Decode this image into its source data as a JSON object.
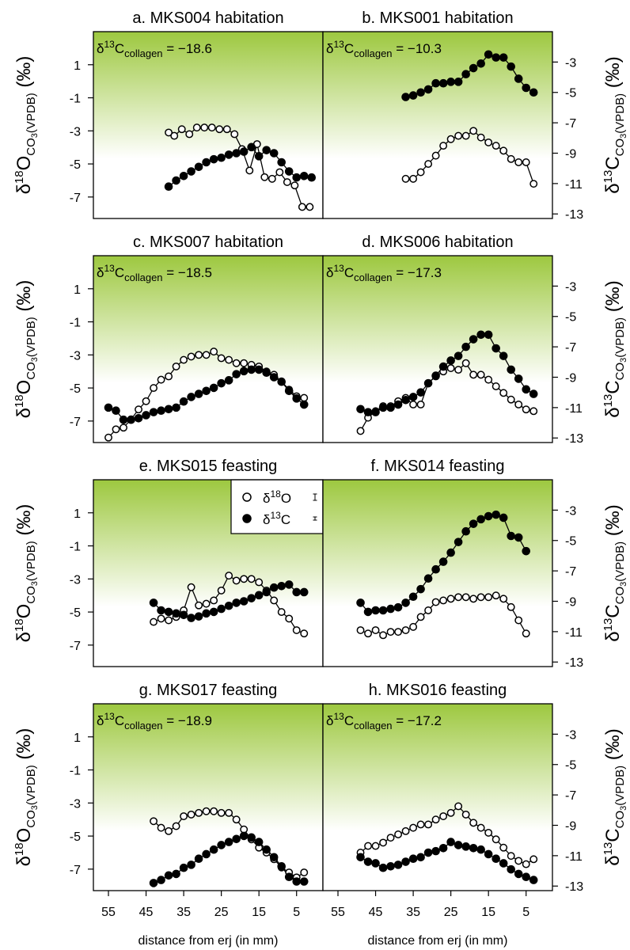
{
  "chart_data": {
    "type": "line",
    "x_axis": {
      "label": "distance from erj (in mm)",
      "ticks": [
        55,
        45,
        35,
        25,
        15,
        5
      ],
      "range": [
        59,
        -2
      ],
      "reversed": true
    },
    "y_left": {
      "label_main": "δ18O",
      "label_sub": "CO3(VPDB)",
      "label_tail": "(‰)",
      "ticks": [
        1,
        -1,
        -3,
        -5,
        -7
      ],
      "range": [
        3.0,
        -8.3
      ]
    },
    "y_right": {
      "label_main": "δ13C",
      "label_sub": "CO3(VPDB)",
      "label_tail": "(‰)",
      "ticks": [
        -3,
        -5,
        -7,
        -9,
        -11,
        -13
      ],
      "range": [
        -1.0,
        -13.3
      ]
    },
    "background": {
      "top_color": "#9dc83f",
      "bottom_color": "#ffffff"
    },
    "legend": {
      "panel": "e",
      "entries": [
        {
          "symbol": "open-circle",
          "label_main": "δ18O"
        },
        {
          "symbol": "filled-circle",
          "label_main": "δ13C"
        }
      ]
    },
    "panels": [
      {
        "id": "a",
        "title": "a. MKS004 habitation",
        "collagen": "−18.6",
        "o18": {
          "x": [
            39,
            37.5,
            35.5,
            33.5,
            31.5,
            29.5,
            27.5,
            25.5,
            23.5,
            21.5,
            19.5,
            17.5,
            15.5,
            13.5,
            11.5,
            9.5,
            7.5,
            5.5,
            3.5,
            1.5
          ],
          "y": [
            -3.1,
            -3.3,
            -2.9,
            -3.2,
            -2.8,
            -2.8,
            -2.8,
            -2.9,
            -2.9,
            -3.2,
            -4.1,
            -5.4,
            -3.8,
            -5.8,
            -5.9,
            -5.5,
            -6.1,
            -6.3,
            -7.6,
            -7.6
          ]
        },
        "c13": {
          "x": [
            39,
            37,
            35,
            33,
            31,
            29,
            27,
            25,
            23,
            21,
            19,
            17,
            15,
            13,
            11,
            9,
            7,
            5,
            3,
            1
          ],
          "y": [
            -11.2,
            -10.8,
            -10.5,
            -10.2,
            -9.9,
            -9.6,
            -9.4,
            -9.3,
            -9.1,
            -9.0,
            -8.9,
            -8.6,
            -9.2,
            -8.8,
            -9.0,
            -9.6,
            -10.2,
            -10.6,
            -10.5,
            -10.6
          ]
        }
      },
      {
        "id": "b",
        "title": "b. MKS001 habitation",
        "collagen": "−10.3",
        "o18": {
          "x": [
            37,
            35,
            33,
            31,
            29,
            27,
            25,
            23,
            21,
            19,
            17,
            15,
            13,
            11,
            9,
            7,
            5,
            3
          ],
          "y": [
            -5.9,
            -5.9,
            -5.5,
            -5.0,
            -4.5,
            -3.9,
            -3.5,
            -3.3,
            -3.3,
            -3.0,
            -3.4,
            -3.7,
            -3.9,
            -4.2,
            -4.7,
            -4.9,
            -4.9,
            -6.2
          ]
        },
        "c13": {
          "x": [
            37,
            35,
            33,
            31,
            29,
            27,
            25,
            23,
            21,
            19,
            17,
            15,
            13,
            11,
            9,
            7,
            5,
            3
          ],
          "y": [
            -5.3,
            -5.2,
            -5.0,
            -4.8,
            -4.4,
            -4.4,
            -4.3,
            -4.3,
            -3.8,
            -3.4,
            -3.1,
            -2.5,
            -2.7,
            -2.7,
            -3.3,
            -4.1,
            -4.7,
            -5.0
          ]
        }
      },
      {
        "id": "c",
        "title": "c. MKS007 habitation",
        "collagen": "−18.5",
        "o18": {
          "x": [
            55,
            53,
            51,
            49,
            47,
            45,
            43,
            41,
            39,
            37,
            35,
            33,
            31,
            29,
            27,
            25,
            23,
            21,
            19,
            17,
            15,
            13,
            11,
            9,
            7,
            5,
            3
          ],
          "y": [
            -8.0,
            -7.5,
            -7.4,
            -6.9,
            -6.3,
            -5.8,
            -5.0,
            -4.5,
            -4.3,
            -3.7,
            -3.3,
            -3.1,
            -3.0,
            -3.0,
            -2.8,
            -3.2,
            -3.3,
            -3.5,
            -3.5,
            -3.6,
            -3.7,
            -4.0,
            -4.2,
            -4.6,
            -5.1,
            -5.5,
            -5.6
          ]
        },
        "c13": {
          "x": [
            55,
            53,
            51,
            49,
            47,
            45,
            43,
            41,
            39,
            37,
            35,
            33,
            31,
            29,
            27,
            25,
            23,
            21,
            19,
            17,
            15,
            13,
            11,
            9,
            7,
            5,
            3
          ],
          "y": [
            -11.0,
            -11.2,
            -11.8,
            -11.8,
            -11.7,
            -11.5,
            -11.3,
            -11.2,
            -11.1,
            -11.0,
            -10.6,
            -10.3,
            -10.1,
            -9.9,
            -9.7,
            -9.4,
            -9.2,
            -8.8,
            -8.6,
            -8.5,
            -8.5,
            -8.7,
            -9.0,
            -9.3,
            -9.9,
            -10.4,
            -10.8
          ]
        }
      },
      {
        "id": "d",
        "title": "d. MKS006 habitation",
        "collagen": "−17.3",
        "o18": {
          "x": [
            49,
            47,
            45,
            43,
            41,
            39,
            37,
            35,
            33,
            31,
            29,
            27,
            25,
            23,
            21,
            19,
            17,
            15,
            13,
            11,
            9,
            7,
            5,
            3
          ],
          "y": [
            -7.6,
            -6.8,
            -6.4,
            -6.1,
            -6.1,
            -5.8,
            -5.6,
            -6.0,
            -6.0,
            -4.7,
            -4.3,
            -4.0,
            -3.8,
            -3.9,
            -3.5,
            -4.2,
            -4.2,
            -4.5,
            -4.9,
            -5.3,
            -5.7,
            -6.0,
            -6.3,
            -6.4
          ]
        },
        "c13": {
          "x": [
            49,
            47,
            45,
            43,
            41,
            39,
            37,
            35,
            33,
            31,
            29,
            27,
            25,
            23,
            21,
            19,
            17,
            15,
            13,
            11,
            9,
            7,
            5,
            3
          ],
          "y": [
            -11.1,
            -11.3,
            -11.3,
            -11.0,
            -11.0,
            -10.8,
            -10.5,
            -10.3,
            -10.0,
            -9.4,
            -8.9,
            -8.3,
            -7.9,
            -7.6,
            -7.0,
            -6.5,
            -6.2,
            -6.2,
            -7.1,
            -7.6,
            -8.5,
            -9.1,
            -9.8,
            -10.1
          ]
        }
      },
      {
        "id": "e",
        "title": "e. MKS015 feasting",
        "o18": {
          "x": [
            43,
            41,
            39,
            37,
            35,
            33,
            31,
            29,
            27,
            25,
            23,
            21,
            19,
            17,
            15,
            13,
            11,
            9,
            7,
            5,
            3
          ],
          "y": [
            -5.6,
            -5.4,
            -5.5,
            -5.3,
            -4.9,
            -3.5,
            -4.6,
            -4.5,
            -4.3,
            -3.7,
            -2.8,
            -3.1,
            -3.0,
            -3.0,
            -3.2,
            -3.7,
            -4.3,
            -5.0,
            -5.4,
            -6.1,
            -6.3
          ]
        },
        "c13": {
          "x": [
            43,
            41,
            39,
            37,
            35,
            33,
            31,
            29,
            27,
            25,
            23,
            21,
            19,
            17,
            15,
            13,
            11,
            9,
            7,
            5,
            3
          ],
          "y": [
            -9.1,
            -9.6,
            -9.7,
            -9.8,
            -9.9,
            -10.1,
            -10.0,
            -9.8,
            -9.7,
            -9.5,
            -9.3,
            -9.1,
            -9.0,
            -8.8,
            -8.6,
            -8.4,
            -8.1,
            -8.0,
            -7.9,
            -8.4,
            -8.4
          ]
        }
      },
      {
        "id": "f",
        "title": "f. MKS014 feasting",
        "o18": {
          "x": [
            49,
            47,
            45,
            43,
            41,
            39,
            37,
            35,
            33,
            31,
            29,
            27,
            25,
            23,
            21,
            19,
            17,
            15,
            13,
            11,
            9,
            7,
            5
          ],
          "y": [
            -6.1,
            -6.3,
            -6.1,
            -6.4,
            -6.2,
            -6.2,
            -6.1,
            -5.9,
            -5.3,
            -4.9,
            -4.4,
            -4.3,
            -4.2,
            -4.1,
            -4.1,
            -4.2,
            -4.1,
            -4.1,
            -4.0,
            -4.2,
            -4.7,
            -5.5,
            -6.3
          ]
        },
        "c13": {
          "x": [
            49,
            47,
            45,
            43,
            41,
            39,
            37,
            35,
            33,
            31,
            29,
            27,
            25,
            23,
            21,
            19,
            17,
            15,
            13,
            11,
            9,
            7,
            5
          ],
          "y": [
            -9.1,
            -9.7,
            -9.6,
            -9.6,
            -9.5,
            -9.4,
            -9.1,
            -8.7,
            -8.2,
            -7.5,
            -6.9,
            -6.4,
            -5.8,
            -5.1,
            -4.4,
            -3.9,
            -3.6,
            -3.4,
            -3.3,
            -3.5,
            -4.7,
            -4.8,
            -5.7
          ]
        }
      },
      {
        "id": "g",
        "title": "g. MKS017 feasting",
        "collagen": "−18.9",
        "o18": {
          "x": [
            43,
            41,
            39,
            37,
            35,
            33,
            31,
            29,
            27,
            25,
            23,
            21,
            19,
            17,
            15,
            13,
            11,
            9,
            7,
            5,
            3
          ],
          "y": [
            -4.1,
            -4.5,
            -4.7,
            -4.4,
            -3.8,
            -3.7,
            -3.6,
            -3.5,
            -3.5,
            -3.6,
            -3.6,
            -4.0,
            -4.6,
            -5.2,
            -5.7,
            -6.0,
            -6.4,
            -6.9,
            -7.2,
            -7.5,
            -7.2
          ]
        },
        "c13": {
          "x": [
            43,
            41,
            39,
            37,
            35,
            33,
            31,
            29,
            27,
            25,
            23,
            21,
            19,
            17,
            15,
            13,
            11,
            9,
            7,
            5,
            3
          ],
          "y": [
            -12.8,
            -12.6,
            -12.3,
            -12.2,
            -11.8,
            -11.6,
            -11.2,
            -10.9,
            -10.6,
            -10.3,
            -10.1,
            -9.9,
            -9.7,
            -9.8,
            -10.1,
            -10.6,
            -11.1,
            -11.7,
            -12.4,
            -12.7,
            -12.7
          ]
        }
      },
      {
        "id": "h",
        "title": "h. MKS016 feasting",
        "collagen": "−17.2",
        "o18": {
          "x": [
            49,
            47,
            45,
            43,
            41,
            39,
            37,
            35,
            33,
            31,
            29,
            27,
            25,
            23,
            21,
            19,
            17,
            15,
            13,
            11,
            9,
            7,
            5,
            3
          ],
          "y": [
            -6.0,
            -5.6,
            -5.6,
            -5.4,
            -5.1,
            -4.9,
            -4.7,
            -4.5,
            -4.3,
            -4.3,
            -4.0,
            -3.8,
            -3.6,
            -3.2,
            -3.7,
            -4.2,
            -4.5,
            -4.8,
            -5.2,
            -5.7,
            -6.2,
            -6.5,
            -6.7,
            -6.4
          ]
        },
        "c13": {
          "x": [
            49,
            47,
            45,
            43,
            41,
            39,
            37,
            35,
            33,
            31,
            29,
            27,
            25,
            23,
            21,
            19,
            17,
            15,
            13,
            11,
            9,
            7,
            5,
            3
          ],
          "y": [
            -11.1,
            -11.4,
            -11.5,
            -11.8,
            -11.7,
            -11.6,
            -11.4,
            -11.2,
            -11.1,
            -10.8,
            -10.7,
            -10.5,
            -10.1,
            -10.3,
            -10.4,
            -10.5,
            -10.6,
            -10.9,
            -11.2,
            -11.5,
            -11.9,
            -12.2,
            -12.4,
            -12.6
          ]
        }
      }
    ]
  }
}
